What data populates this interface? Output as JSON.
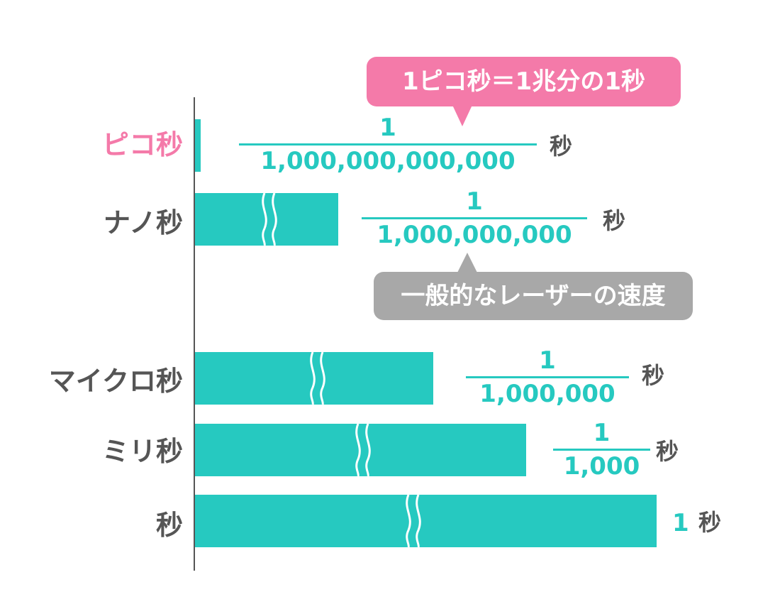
{
  "colors": {
    "accent": "#26c9c0",
    "pink": "#f47aa9",
    "gray_text": "#555555",
    "gray_callout": "#a8a8a8"
  },
  "rows": [
    {
      "label": "ピコ秒",
      "numerator": "1",
      "denominator": "1,000,000,000,000",
      "unit": "秒"
    },
    {
      "label": "ナノ秒",
      "numerator": "1",
      "denominator": "1,000,000,000",
      "unit": "秒"
    },
    {
      "label": "マイクロ秒",
      "numerator": "1",
      "denominator": "1,000,000",
      "unit": "秒"
    },
    {
      "label": "ミリ秒",
      "numerator": "1",
      "denominator": "1,000",
      "unit": "秒"
    },
    {
      "label": "秒",
      "value": "1",
      "unit": "秒"
    }
  ],
  "callouts": {
    "pico_definition": "1ピコ秒＝1兆分の1秒",
    "laser_speed": "一般的なレーザーの速度"
  }
}
